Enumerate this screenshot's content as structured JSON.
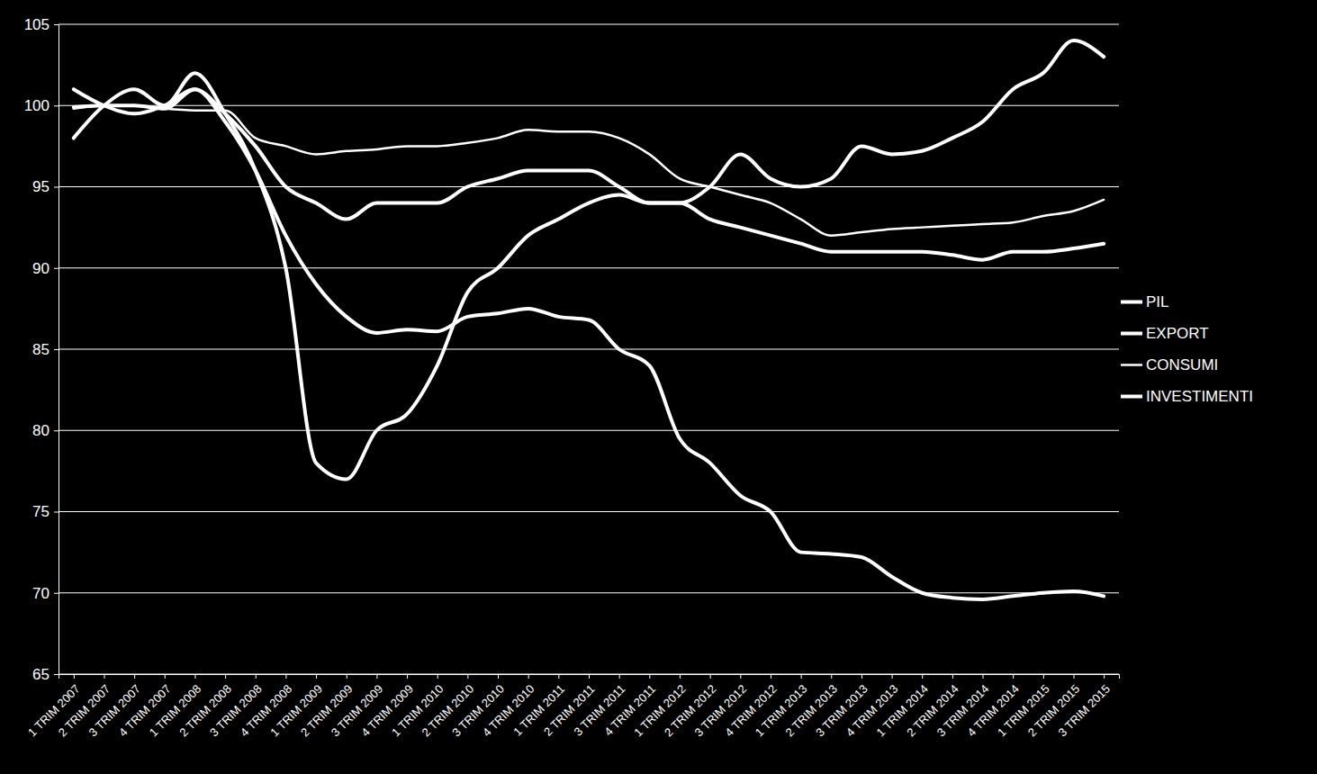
{
  "chart_data": {
    "type": "line",
    "categories": [
      "1 TRIM 2007",
      "2 TRIM 2007",
      "3 TRIM 2007",
      "4 TRIM 2007",
      "1 TRIM 2008",
      "2 TRIM 2008",
      "3 TRIM 2008",
      "4 TRIM 2008",
      "1 TRIM 2009",
      "2 TRIM 2009",
      "3 TRIM 2009",
      "4 TRIM 2009",
      "1 TRIM 2010",
      "2 TRIM 2010",
      "3 TRIM 2010",
      "4 TRIM 2010",
      "1 TRIM 2011",
      "2 TRIM 2011",
      "3 TRIM 2011",
      "4 TRIM 2011",
      "1 TRIM 2012",
      "2 TRIM 2012",
      "3 TRIM 2012",
      "4 TRIM 2012",
      "1 TRIM 2013",
      "2 TRIM 2013",
      "3 TRIM 2013",
      "4 TRIM 2013",
      "1 TRIM 2014",
      "2 TRIM 2014",
      "3 TRIM 2014",
      "4 TRIM 2014",
      "1 TRIM 2015",
      "2 TRIM 2015",
      "3 TRIM 2015"
    ],
    "series": [
      {
        "name": "PIL",
        "color": "#ffffff",
        "values": [
          99.9,
          100,
          100,
          99.8,
          101,
          99.5,
          97.5,
          95,
          94,
          93,
          94,
          94,
          94,
          95,
          95.5,
          96,
          96,
          96,
          95,
          94,
          94,
          93,
          92.5,
          92,
          91.5,
          91,
          91,
          91,
          91,
          90.8,
          90.5,
          91,
          91,
          91.2,
          91.5
        ]
      },
      {
        "name": "EXPORT",
        "color": "#ffffff",
        "values": [
          98,
          100,
          101,
          100,
          102,
          99.5,
          96,
          90,
          78,
          77,
          80,
          81,
          84,
          88.5,
          90,
          92,
          93,
          94,
          94.5,
          94,
          94,
          95,
          97,
          95.5,
          95,
          95.5,
          97.5,
          97,
          97.2,
          98,
          99,
          101,
          102,
          104,
          103
        ]
      },
      {
        "name": "CONSUMI",
        "color": "#ffffff",
        "values": [
          99.8,
          100,
          100,
          99.8,
          99.7,
          99.7,
          98,
          97.5,
          97,
          97.2,
          97.3,
          97.5,
          97.5,
          97.7,
          98,
          98.5,
          98.4,
          98.4,
          98,
          97,
          95.5,
          95,
          94.5,
          94,
          93,
          92,
          92.2,
          92.4,
          92.5,
          92.6,
          92.7,
          92.8,
          93.2,
          93.5,
          94.2
        ]
      },
      {
        "name": "INVESTIMENTI",
        "color": "#ffffff",
        "values": [
          101,
          100,
          99.5,
          100,
          101,
          99,
          96,
          92,
          89,
          87,
          86,
          86.2,
          86.1,
          87,
          87.2,
          87.5,
          87,
          86.8,
          85,
          84,
          79.5,
          78,
          76,
          75,
          72.5,
          72.4,
          72.2,
          71,
          70,
          69.7,
          69.6,
          69.8,
          70,
          70.1,
          69.8
        ]
      }
    ],
    "ylim": [
      65,
      105
    ],
    "yticks": [
      65,
      70,
      75,
      80,
      85,
      90,
      95,
      100,
      105
    ],
    "grid": true,
    "legend": "right"
  }
}
